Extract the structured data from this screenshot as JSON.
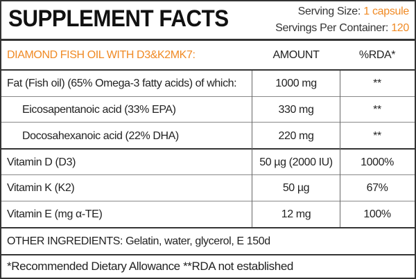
{
  "header": {
    "title": "SUPPLEMENT FACTS",
    "serving_size_label": "Serving Size:",
    "serving_size": "1 capsule",
    "servings_label": "Servings Per Container:",
    "servings": "120"
  },
  "table": {
    "columns": [
      "DIAMOND FISH OIL WITH D3&K2MK7:",
      "AMOUNT",
      "%RDA*"
    ],
    "rows": [
      [
        "Fat (Fish oil) (65% Omega-3 fatty acids) of which:",
        "1000 mg",
        "**"
      ],
      [
        "Eicosapentanoic acid (33% EPA)",
        "330 mg",
        "**"
      ],
      [
        "Docosahexanoic acid (22% DHA)",
        "220 mg",
        "**"
      ],
      [
        "Vitamin D (D3)",
        "50 µg (2000 IU)",
        "1000%"
      ],
      [
        "Vitamin K (K2)",
        "50 µg",
        "67%"
      ],
      [
        "Vitamin E (mg α-TE)",
        "12 mg",
        "100%"
      ]
    ]
  },
  "other_ingredients": "OTHER INGREDIENTS: Gelatin, water, glycerol, E 150d",
  "footnote": "*Recommended Dietary Allowance  **RDA not established"
}
